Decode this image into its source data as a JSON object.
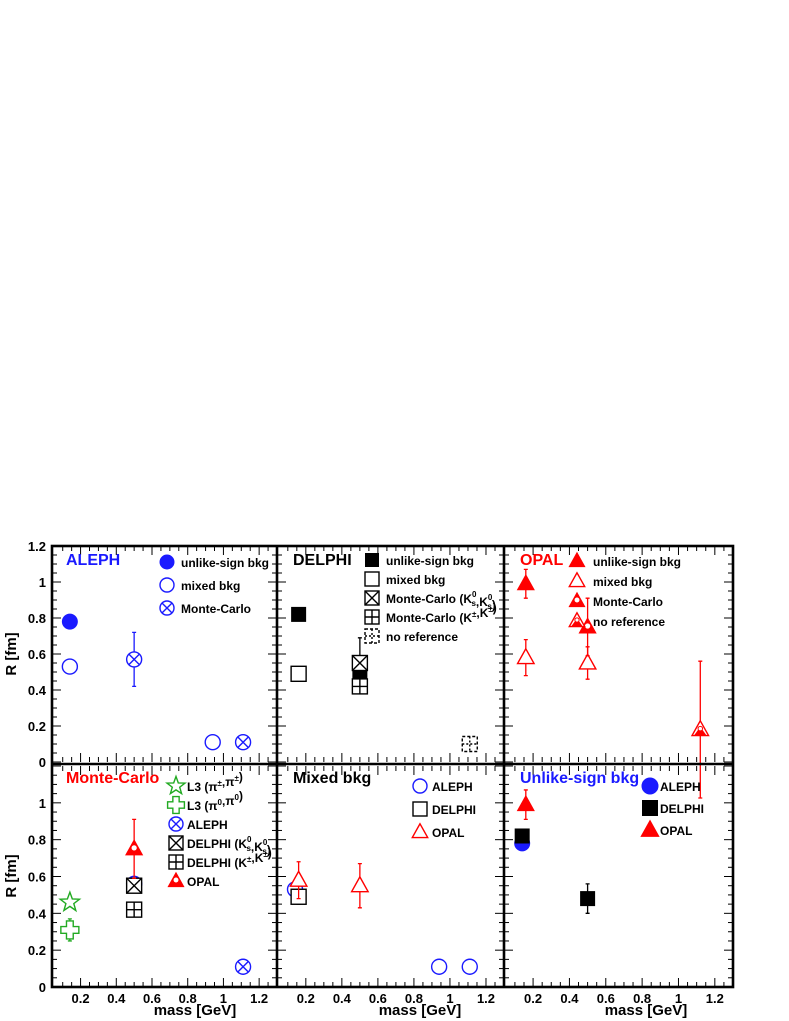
{
  "colors": {
    "blue": "#1a1aff",
    "red": "#ff0000",
    "green": "#22aa22",
    "black": "#000000"
  },
  "chart_data": {
    "type": "scatter",
    "xlabel": "mass [GeV]",
    "ylabel": "R [fm]",
    "xlim": [
      0.04,
      1.3
    ],
    "ylim": [
      0,
      1.2
    ],
    "xticks": [
      "0.2",
      "0.4",
      "0.6",
      "0.8",
      "1",
      "1.2"
    ],
    "yticks_top": [
      "0",
      "0.2",
      "0.4",
      "0.6",
      "0.8",
      "1",
      "1.2"
    ],
    "yticks_bottom": [
      "0",
      "0.2",
      "0.4",
      "0.6",
      "0.8",
      "1"
    ],
    "panels": [
      {
        "title": "ALEPH",
        "title_color": "#1a1aff",
        "legend": [
          {
            "label": "unlike-sign bkg",
            "marker": "circle-filled",
            "color": "#1a1aff"
          },
          {
            "label": "mixed bkg",
            "marker": "circle-open",
            "color": "#1a1aff"
          },
          {
            "label": "Monte-Carlo",
            "marker": "circle-x",
            "color": "#1a1aff"
          }
        ],
        "series": [
          {
            "marker": "circle-filled",
            "color": "#1a1aff",
            "points": [
              {
                "x": 0.14,
                "y": 0.78
              }
            ]
          },
          {
            "marker": "circle-open",
            "color": "#1a1aff",
            "points": [
              {
                "x": 0.14,
                "y": 0.53
              },
              {
                "x": 0.94,
                "y": 0.11
              }
            ]
          },
          {
            "marker": "circle-x",
            "color": "#1a1aff",
            "points": [
              {
                "x": 0.5,
                "y": 0.57,
                "err": 0.15
              },
              {
                "x": 1.11,
                "y": 0.11
              }
            ]
          }
        ]
      },
      {
        "title": "DELPHI",
        "title_color": "#000000",
        "legend": [
          {
            "label": "unlike-sign bkg",
            "marker": "square-filled",
            "color": "#000000"
          },
          {
            "label": "mixed bkg",
            "marker": "square-open",
            "color": "#000000"
          },
          {
            "label": "Monte-Carlo (K",
            "sub": "s",
            "sup": "0",
            "label2": ",K",
            "sub2": "s",
            "sup2": "0",
            "label3": ")",
            "marker": "square-x",
            "color": "#000000"
          },
          {
            "label": "Monte-Carlo (K",
            "sup": "±",
            "label2": ",K",
            "sup2": "±",
            "label3": ")",
            "marker": "square-plus",
            "color": "#000000"
          },
          {
            "label": "no reference",
            "marker": "square-dashplus",
            "color": "#000000"
          }
        ],
        "series": [
          {
            "marker": "square-filled",
            "color": "#000000",
            "points": [
              {
                "x": 0.16,
                "y": 0.82
              },
              {
                "x": 0.5,
                "y": 0.48,
                "err": 0.08
              }
            ]
          },
          {
            "marker": "square-open",
            "color": "#000000",
            "points": [
              {
                "x": 0.16,
                "y": 0.49,
                "err": 0.04
              }
            ]
          },
          {
            "marker": "square-x",
            "color": "#000000",
            "points": [
              {
                "x": 0.5,
                "y": 0.55,
                "err": 0.14
              }
            ]
          },
          {
            "marker": "square-plus",
            "color": "#000000",
            "points": [
              {
                "x": 0.5,
                "y": 0.42
              }
            ]
          },
          {
            "marker": "square-dashplus",
            "color": "#000000",
            "points": [
              {
                "x": 1.11,
                "y": 0.1,
                "err": 0.03
              }
            ]
          }
        ]
      },
      {
        "title": "OPAL",
        "title_color": "#ff0000",
        "legend": [
          {
            "label": "unlike-sign bkg",
            "marker": "triangle-filled",
            "color": "#ff0000"
          },
          {
            "label": "mixed bkg",
            "marker": "triangle-open",
            "color": "#ff0000"
          },
          {
            "label": "Monte-Carlo",
            "marker": "triangle-dot",
            "color": "#ff0000"
          },
          {
            "label": "no reference",
            "marker": "triangle-half",
            "color": "#ff0000"
          }
        ],
        "series": [
          {
            "marker": "triangle-filled",
            "color": "#ff0000",
            "points": [
              {
                "x": 0.16,
                "y": 0.99,
                "err": 0.08
              }
            ]
          },
          {
            "marker": "triangle-open",
            "color": "#ff0000",
            "points": [
              {
                "x": 0.16,
                "y": 0.58,
                "err": 0.1
              },
              {
                "x": 0.5,
                "y": 0.55,
                "err": 0.09
              }
            ]
          },
          {
            "marker": "triangle-dot",
            "color": "#ff0000",
            "points": [
              {
                "x": 0.5,
                "y": 0.75,
                "err": 0.16
              }
            ]
          },
          {
            "marker": "triangle-half",
            "color": "#ff0000",
            "points": [
              {
                "x": 1.12,
                "y": 0.18,
                "err": 0.38
              }
            ]
          }
        ]
      },
      {
        "title": "Monte-Carlo",
        "title_color": "#ff0000",
        "legend": [
          {
            "label": "L3 (π",
            "sup": "±",
            "label2": ",π",
            "sup2": "±",
            "label3": ")",
            "marker": "star-open",
            "color": "#22aa22"
          },
          {
            "label": "L3 (π",
            "sup": "0",
            "label2": ",π",
            "sup2": "0",
            "label3": ")",
            "marker": "cross-open",
            "color": "#22aa22"
          },
          {
            "label": "ALEPH",
            "marker": "circle-x",
            "color": "#1a1aff"
          },
          {
            "label": "DELPHI (K",
            "sub": "s",
            "sup": "0",
            "label2": ",K",
            "sub2": "s",
            "sup2": "0",
            "label3": ")",
            "marker": "square-x",
            "color": "#000000"
          },
          {
            "label": "DELPHI (K",
            "sup": "±",
            "label2": ",K",
            "sup2": "±",
            "label3": ")",
            "marker": "square-plus",
            "color": "#000000"
          },
          {
            "label": "OPAL",
            "marker": "triangle-dot",
            "color": "#ff0000"
          }
        ],
        "series": [
          {
            "marker": "star-open",
            "color": "#22aa22",
            "points": [
              {
                "x": 0.14,
                "y": 0.46
              }
            ]
          },
          {
            "marker": "cross-open",
            "color": "#22aa22",
            "points": [
              {
                "x": 0.14,
                "y": 0.31,
                "err": 0.06
              }
            ]
          },
          {
            "marker": "circle-x",
            "color": "#1a1aff",
            "points": [
              {
                "x": 0.5,
                "y": 0.56,
                "err": 0.02
              },
              {
                "x": 1.11,
                "y": 0.11
              }
            ]
          },
          {
            "marker": "square-x",
            "color": "#000000",
            "points": [
              {
                "x": 0.5,
                "y": 0.55
              }
            ]
          },
          {
            "marker": "square-plus",
            "color": "#000000",
            "points": [
              {
                "x": 0.5,
                "y": 0.42
              }
            ]
          },
          {
            "marker": "triangle-dot",
            "color": "#ff0000",
            "points": [
              {
                "x": 0.5,
                "y": 0.75,
                "err": 0.16
              }
            ]
          }
        ]
      },
      {
        "title": "Mixed bkg",
        "title_color": "#000000",
        "legend": [
          {
            "label": "ALEPH",
            "marker": "circle-open",
            "color": "#1a1aff"
          },
          {
            "label": "DELPHI",
            "marker": "square-open",
            "color": "#000000"
          },
          {
            "label": "OPAL",
            "marker": "triangle-open",
            "color": "#ff0000"
          }
        ],
        "series": [
          {
            "marker": "circle-open",
            "color": "#1a1aff",
            "points": [
              {
                "x": 0.14,
                "y": 0.53
              },
              {
                "x": 0.94,
                "y": 0.11
              },
              {
                "x": 1.11,
                "y": 0.11
              }
            ]
          },
          {
            "marker": "square-open",
            "color": "#000000",
            "points": [
              {
                "x": 0.16,
                "y": 0.49,
                "err": 0.04
              }
            ]
          },
          {
            "marker": "triangle-open",
            "color": "#ff0000",
            "points": [
              {
                "x": 0.16,
                "y": 0.58,
                "err": 0.1
              },
              {
                "x": 0.5,
                "y": 0.55,
                "err": 0.12
              }
            ]
          }
        ]
      },
      {
        "title": "Unlike-sign bkg",
        "title_color": "#1a1aff",
        "legend": [
          {
            "label": "ALEPH",
            "marker": "circle-filled",
            "color": "#1a1aff"
          },
          {
            "label": "DELPHI",
            "marker": "square-filled",
            "color": "#000000"
          },
          {
            "label": "OPAL",
            "marker": "triangle-filled",
            "color": "#ff0000"
          }
        ],
        "series": [
          {
            "marker": "circle-filled",
            "color": "#1a1aff",
            "points": [
              {
                "x": 0.14,
                "y": 0.78
              }
            ]
          },
          {
            "marker": "square-filled",
            "color": "#000000",
            "points": [
              {
                "x": 0.14,
                "y": 0.82
              },
              {
                "x": 0.5,
                "y": 0.48,
                "err": 0.08
              }
            ]
          },
          {
            "marker": "triangle-filled",
            "color": "#ff0000",
            "points": [
              {
                "x": 0.16,
                "y": 0.99,
                "err": 0.08
              }
            ]
          }
        ]
      }
    ]
  }
}
